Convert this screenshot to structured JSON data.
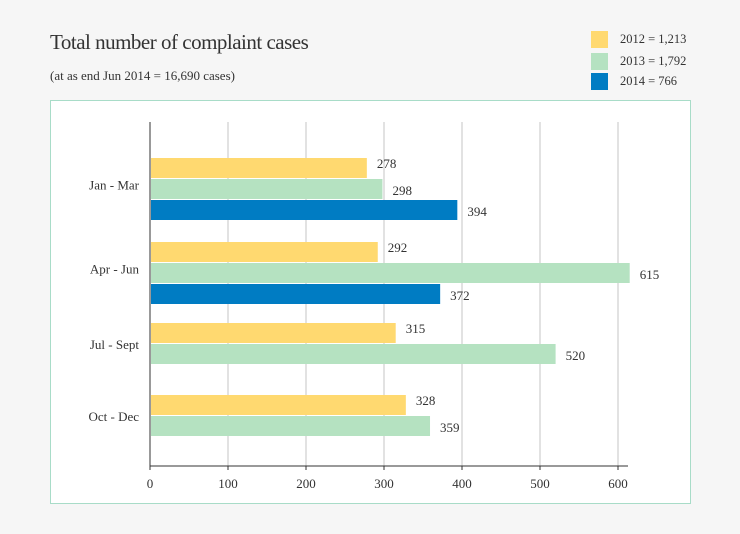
{
  "chart_data": {
    "type": "bar",
    "orientation": "horizontal",
    "title": "Total number of complaint cases",
    "subtitle": "(at as end Jun 2014 = 16,690 cases)",
    "categories": [
      "Jan - Mar",
      "Apr - Jun",
      "Jul - Sept",
      "Oct - Dec"
    ],
    "series": [
      {
        "name": "2012 = 1,213",
        "color": "#ffd970",
        "values": [
          278,
          292,
          315,
          328
        ]
      },
      {
        "name": "2013 = 1,792",
        "color": "#b5e2c1",
        "values": [
          298,
          615,
          520,
          359
        ]
      },
      {
        "name": "2014 = 766",
        "color": "#007cc3",
        "values": [
          394,
          372,
          null,
          null
        ]
      }
    ],
    "xlim": [
      0,
      600
    ],
    "xticks": [
      "0",
      "100",
      "200",
      "300",
      "400",
      "500",
      "600"
    ],
    "grid": true,
    "legend": "top-right"
  }
}
